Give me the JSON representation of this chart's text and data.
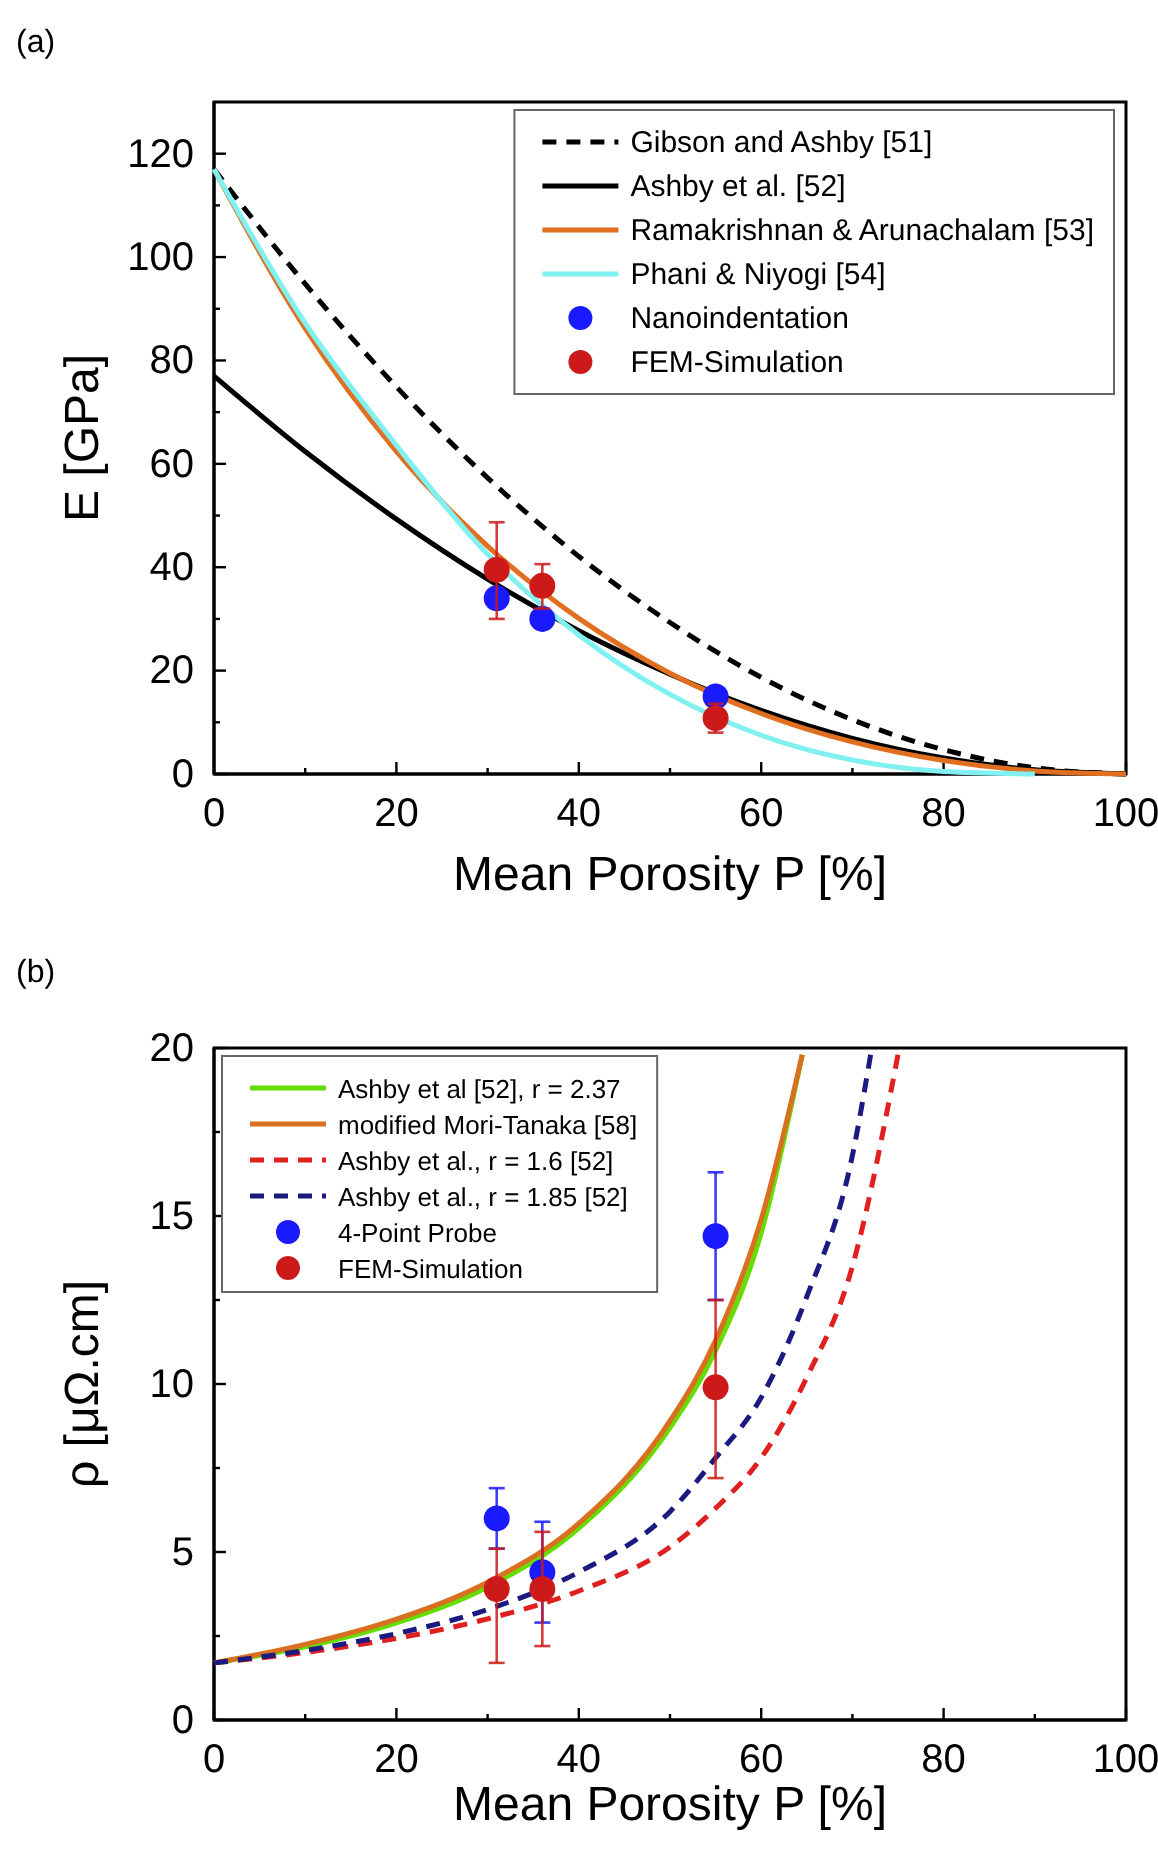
{
  "chart_data": [
    {
      "type": "line",
      "xlabel": "Mean Porosity P [%]",
      "ylabel": "E [GPa]",
      "annotations": [
        "(a)"
      ],
      "xlim": [
        0,
        100
      ],
      "ylim": [
        0,
        130
      ],
      "xticks": [
        0,
        {
          "value": 10,
          "label": null
        },
        20,
        {
          "value": 30,
          "label": null
        },
        40,
        {
          "value": 50,
          "label": null
        },
        60,
        {
          "value": 70,
          "label": null
        },
        80,
        {
          "value": 90,
          "label": null
        },
        100
      ],
      "yticks": [
        0,
        {
          "value": 10,
          "label": null
        },
        20,
        {
          "value": 30,
          "label": null
        },
        40,
        {
          "value": 50,
          "label": null
        },
        60,
        {
          "value": 70,
          "label": null
        },
        80,
        {
          "value": 90,
          "label": null
        },
        100,
        {
          "value": 110,
          "label": null
        },
        120
      ],
      "grid": false,
      "legend": "top right",
      "series": [
        {
          "name": "Gibson and Ashby [51]",
          "color": "#000000",
          "line_style": "dashed",
          "marker": "none",
          "x": [
            0,
            10,
            20,
            30,
            40,
            50,
            60,
            70,
            80,
            90,
            100
          ],
          "values": [
            117,
            94.8,
            74.9,
            57.3,
            42.1,
            29.3,
            18.7,
            10.5,
            4.7,
            1.2,
            0
          ]
        },
        {
          "name": "Ashby et al. [52]",
          "color": "#000000",
          "line_style": "solid",
          "marker": "none",
          "x": [
            0,
            10,
            20,
            30,
            40,
            50,
            60,
            70,
            80,
            90,
            100
          ],
          "values": [
            77,
            62.4,
            49.3,
            37.7,
            27.7,
            19.3,
            12.3,
            6.9,
            3.1,
            0.8,
            0
          ]
        },
        {
          "name": "Ramakrishnan & Arunachalam [53]",
          "color": "#e07020",
          "line_style": "solid",
          "marker": "none",
          "x": [
            0,
            10,
            20,
            30,
            40,
            50,
            60,
            70,
            80,
            90,
            100
          ],
          "values": [
            117,
            86.2,
            62.4,
            44.1,
            30.1,
            19.5,
            11.7,
            6.2,
            2.6,
            0.6,
            0
          ]
        },
        {
          "name": "Phani & Niyogi [54]",
          "color": "#80f0f0",
          "line_style": "solid",
          "marker": "none",
          "x": [
            0,
            10,
            20,
            30,
            40,
            50,
            60,
            70,
            80,
            90
          ],
          "values": [
            117,
            87.2,
            63.6,
            42.5,
            26.9,
            15.4,
            7.5,
            2.7,
            0.5,
            0
          ]
        },
        {
          "name": "Nanoindentation",
          "type": "scatter",
          "color": "#1a1aff",
          "marker": "circle",
          "x": [
            31,
            36,
            55
          ],
          "values": [
            34,
            30,
            15
          ]
        },
        {
          "name": "FEM-Simulation",
          "type": "scatter",
          "color": "#cc1a1a",
          "marker": "circle",
          "x": [
            31,
            36,
            55
          ],
          "values": [
            39.5,
            36.4,
            10.8
          ],
          "errors": [
            [
              30,
              48.7
            ],
            [
              32,
              40.6
            ],
            [
              8,
              13.6
            ]
          ]
        }
      ]
    },
    {
      "type": "line",
      "xlabel": "Mean Porosity P [%]",
      "ylabel": "ρ [μΩ.cm]",
      "annotations": [
        "(b)"
      ],
      "xlim": [
        0,
        100
      ],
      "ylim": [
        0,
        20
      ],
      "xticks": [
        0,
        {
          "value": 10,
          "label": null
        },
        20,
        {
          "value": 30,
          "label": null
        },
        40,
        {
          "value": 50,
          "label": null
        },
        60,
        {
          "value": 70,
          "label": null
        },
        80,
        {
          "value": 90,
          "label": null
        },
        100
      ],
      "yticks": [
        0,
        {
          "value": 2.5,
          "label": null
        },
        5,
        {
          "value": 7.5,
          "label": null
        },
        10,
        {
          "value": 12.5,
          "label": null
        },
        15,
        {
          "value": 17.5,
          "label": null
        },
        20
      ],
      "grid": false,
      "legend": "top left",
      "series": [
        {
          "name": "Ashby et al [52], r = 2.37",
          "color": "#66dd00",
          "line_style": "solid",
          "marker": "none",
          "x": [
            0,
            10,
            20,
            30,
            40,
            50,
            55,
            60,
            64.5
          ],
          "values": [
            1.7,
            2.18,
            2.89,
            3.96,
            5.71,
            8.7,
            11.0,
            14.5,
            19.8
          ]
        },
        {
          "name": "modified Mori-Tanaka [58]",
          "color": "#d87020",
          "line_style": "solid",
          "marker": "none",
          "x": [
            0,
            10,
            20,
            30,
            40,
            50,
            55,
            60,
            64.5
          ],
          "values": [
            1.7,
            2.25,
            3.0,
            4.1,
            5.85,
            8.9,
            11.3,
            14.9,
            19.8
          ]
        },
        {
          "name": "Ashby et al., r = 1.6 [52]",
          "color": "#e02020",
          "line_style": "dashed",
          "marker": "none",
          "x": [
            0,
            10,
            20,
            30,
            40,
            50,
            55,
            60,
            65,
            70,
            75
          ],
          "values": [
            1.7,
            2.01,
            2.43,
            3.01,
            3.84,
            5.15,
            6.3,
            7.8,
            10.2,
            13.5,
            19.8
          ]
        },
        {
          "name": "Ashby et al., r = 1.85 [52]",
          "color": "#1a1a80",
          "line_style": "dashed",
          "marker": "none",
          "x": [
            0,
            10,
            20,
            30,
            40,
            50,
            55,
            60,
            65,
            70,
            72
          ],
          "values": [
            1.7,
            2.07,
            2.57,
            3.29,
            4.4,
            6.2,
            7.8,
            9.6,
            12.6,
            16.8,
            19.8
          ]
        },
        {
          "name": "4-Point Probe",
          "type": "scatter",
          "color": "#1a1aff",
          "marker": "circle",
          "x": [
            31,
            36,
            55
          ],
          "values": [
            6.0,
            4.4,
            14.4
          ],
          "errors": [
            [
              5.1,
              6.9
            ],
            [
              2.9,
              5.9
            ],
            [
              12.5,
              16.3
            ]
          ]
        },
        {
          "name": "FEM-Simulation",
          "type": "scatter",
          "color": "#cc1a1a",
          "marker": "circle",
          "x": [
            31,
            36,
            55
          ],
          "values": [
            3.9,
            3.9,
            9.9
          ],
          "errors": [
            [
              1.7,
              5.1
            ],
            [
              2.2,
              5.6
            ],
            [
              7.2,
              12.5
            ]
          ]
        }
      ]
    }
  ]
}
